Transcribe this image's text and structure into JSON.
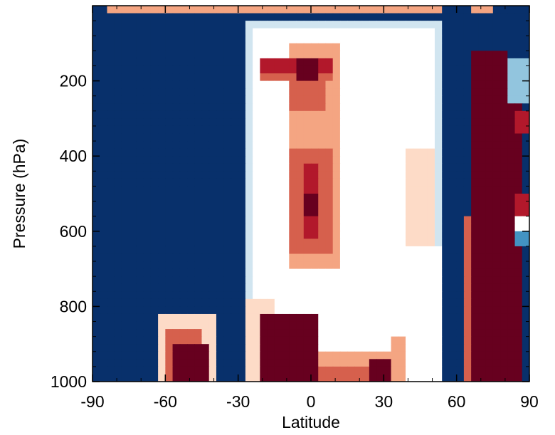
{
  "chart_data": {
    "type": "heatmap",
    "title": "",
    "xlabel": "Latitude",
    "ylabel": "Pressure (hPa)",
    "xlim": [
      -90,
      90
    ],
    "ylim": [
      1000,
      0
    ],
    "x_ticks": [
      -90,
      -60,
      -30,
      0,
      30,
      60,
      90
    ],
    "x_tick_labels": [
      "-90",
      "-60",
      "-30",
      "0",
      "30",
      "60",
      "90"
    ],
    "y_ticks": [
      200,
      400,
      600,
      800,
      1000
    ],
    "y_tick_labels": [
      "200",
      "400",
      "600",
      "800",
      "1000"
    ],
    "grid": false,
    "colorbar": "none",
    "colormap": [
      "#08306b",
      "#2166ac",
      "#4393c3",
      "#92c5de",
      "#d1e5f0",
      "#ffffff",
      "#fddbc7",
      "#f4a582",
      "#d6604d",
      "#b2182b",
      "#67001f"
    ],
    "level_range": [
      -5,
      5
    ],
    "cell_size_deg": 3,
    "cell_size_hpa": 20,
    "regions": [
      {
        "lat": [
          -90,
          -90
        ],
        "p": [
          0,
          0
        ],
        "level": 0
      },
      {
        "lat": [
          -90,
          90
        ],
        "p": [
          0,
          1000
        ],
        "level": -5
      },
      {
        "lat": [
          -85,
          75
        ],
        "p": [
          0,
          25
        ],
        "level": 2
      },
      {
        "lat": [
          -28,
          58
        ],
        "p": [
          40,
          1000
        ],
        "level": -1
      },
      {
        "lat": [
          -24,
          52
        ],
        "p": [
          60,
          1000
        ],
        "level": 0
      },
      {
        "lat": [
          -18,
          40
        ],
        "p": [
          80,
          1000
        ],
        "level": 0
      },
      {
        "lat": [
          -10,
          12
        ],
        "p": [
          100,
          700
        ],
        "level": 2
      },
      {
        "lat": [
          -22,
          8
        ],
        "p": [
          140,
          200
        ],
        "level": 3
      },
      {
        "lat": [
          -10,
          5
        ],
        "p": [
          200,
          280
        ],
        "level": 3
      },
      {
        "lat": [
          -22,
          10
        ],
        "p": [
          150,
          180
        ],
        "level": 4
      },
      {
        "lat": [
          -6,
          4
        ],
        "p": [
          150,
          190
        ],
        "level": 5
      },
      {
        "lat": [
          -8,
          8
        ],
        "p": [
          380,
          660
        ],
        "level": 3
      },
      {
        "lat": [
          -4,
          4
        ],
        "p": [
          420,
          620
        ],
        "level": 4
      },
      {
        "lat": [
          -2,
          2
        ],
        "p": [
          500,
          560
        ],
        "level": 5
      },
      {
        "lat": [
          -64,
          -40
        ],
        "p": [
          820,
          1000
        ],
        "level": 1
      },
      {
        "lat": [
          -60,
          -44
        ],
        "p": [
          860,
          1000
        ],
        "level": 3
      },
      {
        "lat": [
          -58,
          -42
        ],
        "p": [
          900,
          1000
        ],
        "level": 5
      },
      {
        "lat": [
          -28,
          -14
        ],
        "p": [
          780,
          1000
        ],
        "level": 1
      },
      {
        "lat": [
          -22,
          4
        ],
        "p": [
          820,
          1000
        ],
        "level": 5
      },
      {
        "lat": [
          4,
          36
        ],
        "p": [
          920,
          1000
        ],
        "level": 2
      },
      {
        "lat": [
          4,
          30
        ],
        "p": [
          960,
          1000
        ],
        "level": 3
      },
      {
        "lat": [
          24,
          34
        ],
        "p": [
          940,
          1000
        ],
        "level": 5
      },
      {
        "lat": [
          34,
          52
        ],
        "p": [
          880,
          1000
        ],
        "level": 2
      },
      {
        "lat": [
          46,
          52
        ],
        "p": [
          780,
          880
        ],
        "level": 2
      },
      {
        "lat": [
          38,
          50
        ],
        "p": [
          380,
          660
        ],
        "level": 1
      },
      {
        "lat": [
          38,
          58
        ],
        "p": [
          640,
          1000
        ],
        "level": 0
      },
      {
        "lat": [
          54,
          66
        ],
        "p": [
          0,
          1000
        ],
        "level": -5
      },
      {
        "lat": [
          62,
          74
        ],
        "p": [
          560,
          1000
        ],
        "level": 3
      },
      {
        "lat": [
          66,
          82
        ],
        "p": [
          120,
          1000
        ],
        "level": 5
      },
      {
        "lat": [
          70,
          86
        ],
        "p": [
          250,
          1000
        ],
        "level": 5
      },
      {
        "lat": [
          84,
          90
        ],
        "p": [
          280,
          330
        ],
        "level": 4
      },
      {
        "lat": [
          84,
          90
        ],
        "p": [
          500,
          560
        ],
        "level": 4
      },
      {
        "lat": [
          84,
          90
        ],
        "p": [
          560,
          600
        ],
        "level": 0
      },
      {
        "lat": [
          84,
          90
        ],
        "p": [
          600,
          640
        ],
        "level": -3
      },
      {
        "lat": [
          82,
          90
        ],
        "p": [
          140,
          260
        ],
        "level": -2
      }
    ]
  }
}
